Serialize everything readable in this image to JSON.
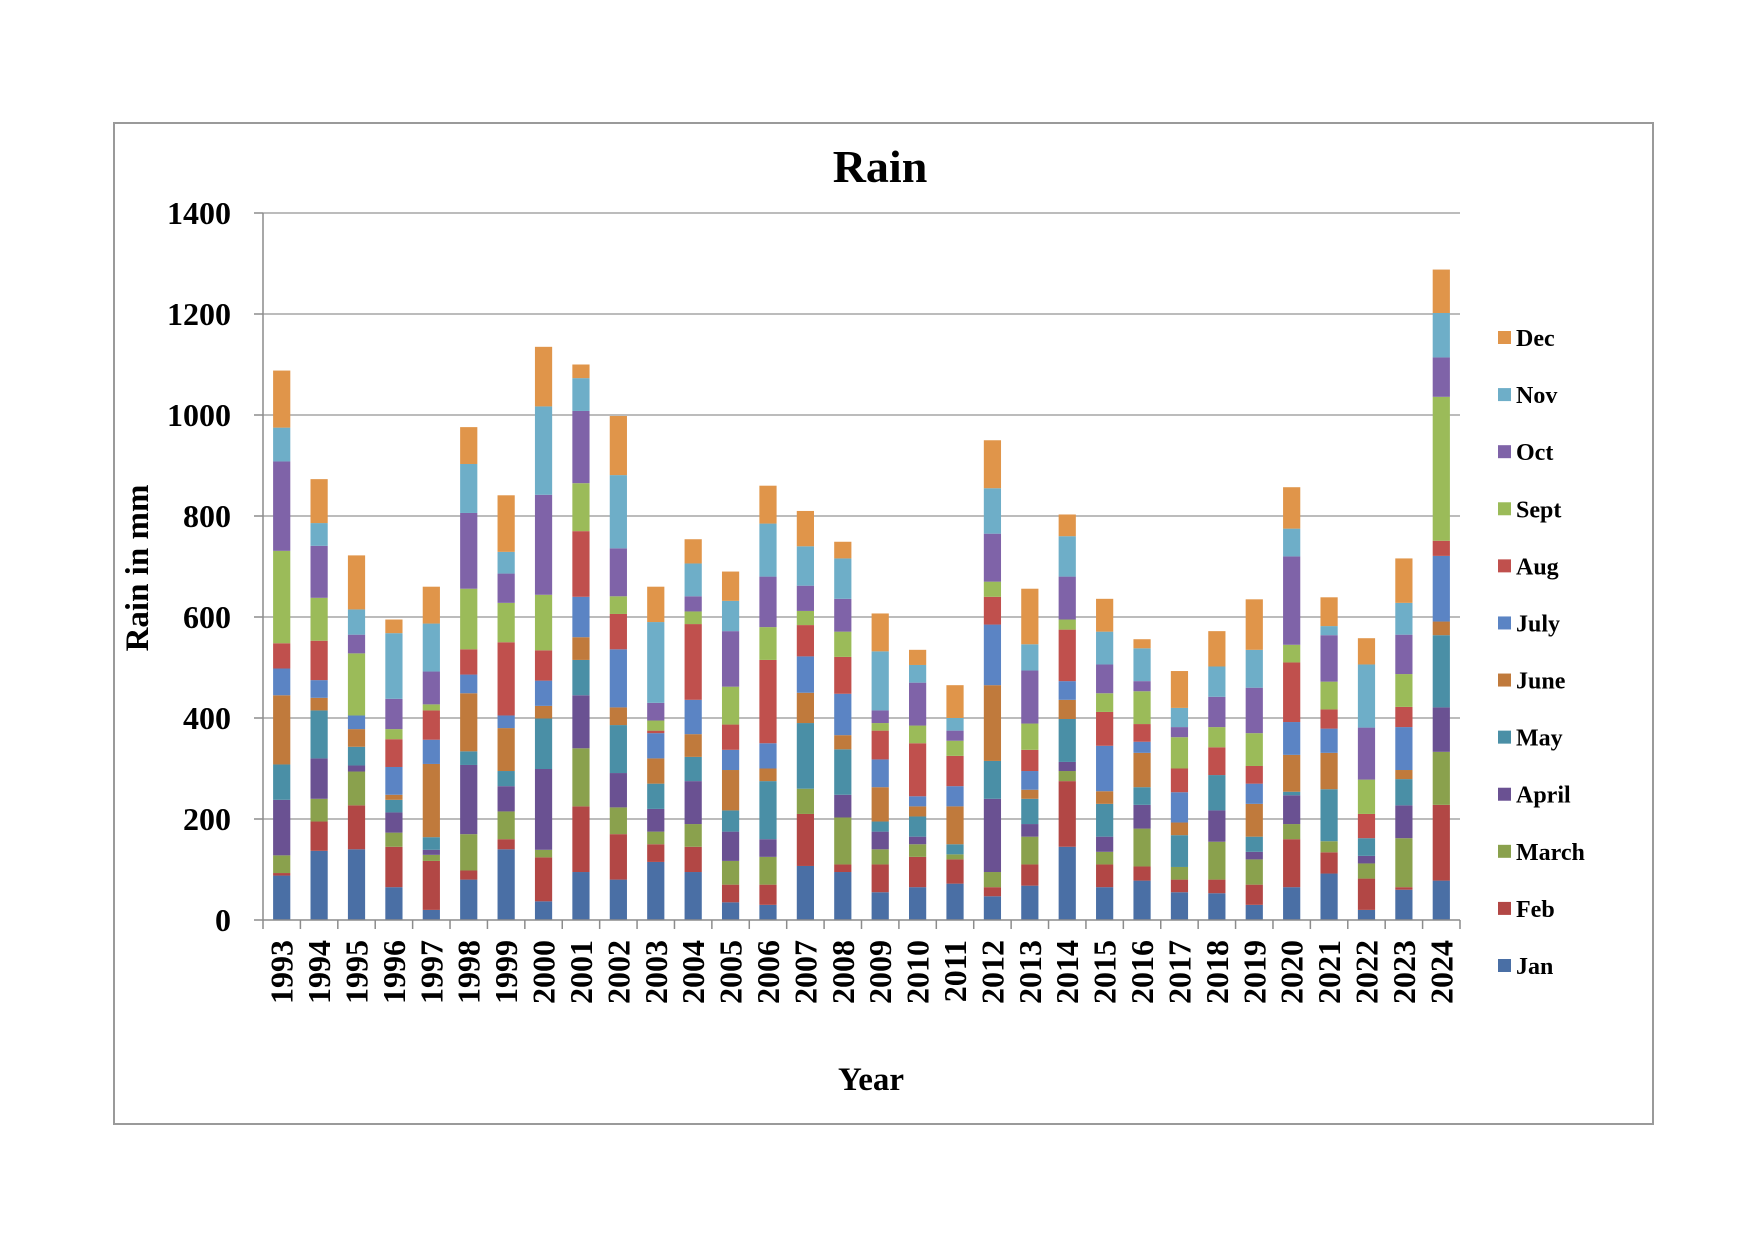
{
  "chart_data": {
    "type": "bar",
    "stacked": true,
    "title": "Rain",
    "xlabel": "Year",
    "ylabel": "Rain in mm",
    "ylim": [
      0,
      1400
    ],
    "yticks": [
      0,
      200,
      400,
      600,
      800,
      1000,
      1200,
      1400
    ],
    "grid": true,
    "legend_position": "right",
    "categories": [
      "1993",
      "1994",
      "1995",
      "1996",
      "1997",
      "1998",
      "1999",
      "2000",
      "2001",
      "2002",
      "2003",
      "2004",
      "2005",
      "2006",
      "2007",
      "2008",
      "2009",
      "2010",
      "2011",
      "2012",
      "2013",
      "2014",
      "2015",
      "2016",
      "2017",
      "2018",
      "2019",
      "2020",
      "2021",
      "2022",
      "2023",
      "2024"
    ],
    "series": [
      {
        "name": "Jan",
        "color": "#4a6fa5",
        "values": [
          88,
          137,
          140,
          65,
          20,
          80,
          140,
          37,
          95,
          80,
          115,
          95,
          35,
          30,
          107,
          95,
          55,
          65,
          72,
          47,
          68,
          145,
          65,
          78,
          55,
          53,
          30,
          65,
          92,
          20,
          60,
          78
        ]
      },
      {
        "name": "Feb",
        "color": "#b24745",
        "values": [
          5,
          58,
          87,
          80,
          97,
          18,
          20,
          87,
          130,
          90,
          35,
          50,
          35,
          40,
          103,
          15,
          55,
          60,
          48,
          18,
          42,
          130,
          45,
          28,
          25,
          27,
          40,
          95,
          42,
          62,
          5,
          150
        ]
      },
      {
        "name": "March",
        "color": "#8aa14d",
        "values": [
          35,
          45,
          67,
          28,
          12,
          72,
          55,
          15,
          115,
          53,
          25,
          45,
          47,
          55,
          50,
          93,
          30,
          25,
          10,
          30,
          55,
          20,
          25,
          75,
          25,
          75,
          50,
          30,
          22,
          30,
          97,
          105
        ]
      },
      {
        "name": "April",
        "color": "#6a5192",
        "values": [
          110,
          80,
          12,
          40,
          10,
          137,
          50,
          160,
          105,
          68,
          45,
          85,
          58,
          35,
          0,
          45,
          35,
          15,
          0,
          145,
          25,
          18,
          30,
          47,
          0,
          62,
          15,
          57,
          0,
          15,
          65,
          88
        ]
      },
      {
        "name": "May",
        "color": "#4a8fa6",
        "values": [
          70,
          95,
          37,
          25,
          25,
          27,
          30,
          100,
          70,
          95,
          50,
          48,
          42,
          115,
          130,
          90,
          20,
          40,
          20,
          75,
          50,
          85,
          65,
          35,
          63,
          70,
          30,
          7,
          103,
          35,
          52,
          143
        ]
      },
      {
        "name": "June",
        "color": "#c07a3c",
        "values": [
          137,
          25,
          35,
          10,
          145,
          115,
          85,
          25,
          45,
          35,
          50,
          45,
          80,
          25,
          60,
          28,
          68,
          20,
          75,
          150,
          18,
          38,
          25,
          68,
          25,
          0,
          65,
          73,
          72,
          0,
          18,
          27
        ]
      },
      {
        "name": "July",
        "color": "#5b84c4",
        "values": [
          53,
          35,
          27,
          55,
          48,
          37,
          25,
          50,
          80,
          115,
          50,
          68,
          40,
          50,
          72,
          82,
          55,
          20,
          40,
          120,
          37,
          37,
          90,
          22,
          60,
          0,
          40,
          65,
          48,
          0,
          85,
          130
        ]
      },
      {
        "name": "Aug",
        "color": "#c0504d",
        "values": [
          50,
          78,
          0,
          55,
          58,
          50,
          145,
          60,
          130,
          70,
          5,
          150,
          50,
          165,
          62,
          73,
          57,
          105,
          60,
          55,
          42,
          102,
          67,
          35,
          47,
          55,
          35,
          118,
          38,
          48,
          40,
          30
        ]
      },
      {
        "name": "Sept",
        "color": "#9bbb59",
        "values": [
          183,
          85,
          123,
          20,
          12,
          120,
          78,
          110,
          95,
          35,
          20,
          25,
          75,
          65,
          28,
          50,
          15,
          35,
          30,
          30,
          52,
          20,
          37,
          65,
          62,
          40,
          65,
          35,
          55,
          68,
          65,
          285
        ]
      },
      {
        "name": "Oct",
        "color": "#7f63a8",
        "values": [
          177,
          103,
          37,
          60,
          65,
          150,
          58,
          198,
          143,
          95,
          35,
          30,
          110,
          100,
          50,
          65,
          25,
          85,
          20,
          95,
          105,
          85,
          57,
          20,
          20,
          60,
          90,
          175,
          92,
          103,
          78,
          78
        ]
      },
      {
        "name": "Nov",
        "color": "#6eaec8",
        "values": [
          67,
          45,
          50,
          130,
          95,
          97,
          43,
          175,
          65,
          145,
          160,
          65,
          60,
          105,
          78,
          80,
          117,
          35,
          25,
          90,
          52,
          80,
          65,
          65,
          38,
          60,
          75,
          55,
          18,
          125,
          63,
          88
        ]
      },
      {
        "name": "Dec",
        "color": "#e0954a",
        "values": [
          113,
          87,
          107,
          27,
          73,
          73,
          112,
          118,
          27,
          117,
          70,
          48,
          58,
          75,
          70,
          33,
          75,
          30,
          65,
          95,
          110,
          43,
          65,
          18,
          73,
          70,
          100,
          82,
          57,
          52,
          88,
          86
        ]
      }
    ],
    "totals": [
      1088,
      873,
      722,
      595,
      660,
      976,
      841,
      1135,
      1100,
      998,
      660,
      754,
      690,
      860,
      810,
      749,
      607,
      535,
      465,
      950,
      656,
      803,
      636,
      556,
      493,
      572,
      635,
      857,
      639,
      558,
      716,
      1288
    ]
  }
}
